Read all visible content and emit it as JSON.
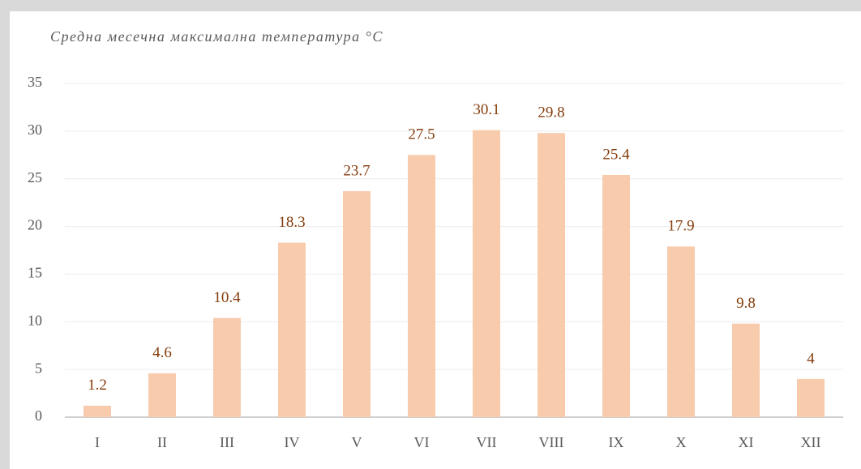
{
  "chart_data": {
    "type": "bar",
    "title": "Средна месечна максимална температура °C",
    "categories": [
      "I",
      "II",
      "III",
      "IV",
      "V",
      "VI",
      "VII",
      "VIII",
      "IX",
      "X",
      "XI",
      "XII"
    ],
    "values": [
      1.2,
      4.6,
      10.4,
      18.3,
      23.7,
      27.5,
      30.1,
      29.8,
      25.4,
      17.9,
      9.8,
      4
    ],
    "color": "#f8cbad",
    "label_color": "#843c0c",
    "ylim": [
      0,
      35
    ],
    "yticks": [
      0,
      5,
      10,
      15,
      20,
      25,
      30,
      35
    ],
    "grid": true
  }
}
